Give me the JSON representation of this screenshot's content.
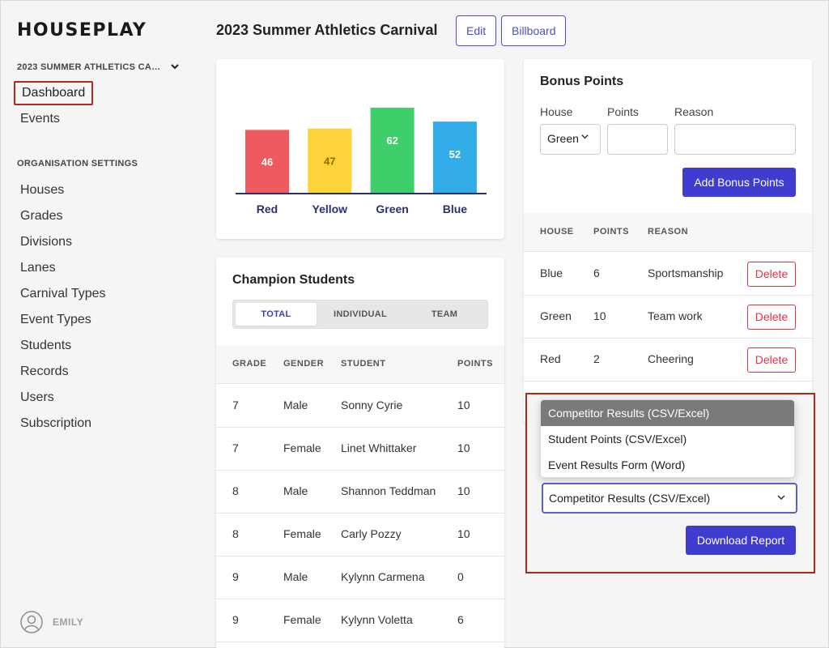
{
  "brand": "HOUSEPLAY",
  "sidebar": {
    "carnival": "2023 SUMMER ATHLETICS CA…",
    "nav": [
      "Dashboard",
      "Events"
    ],
    "org_label": "ORGANISATION SETTINGS",
    "org": [
      "Houses",
      "Grades",
      "Divisions",
      "Lanes",
      "Carnival Types",
      "Event Types",
      "Students",
      "Records",
      "Users",
      "Subscription"
    ],
    "user": "EMILY"
  },
  "header": {
    "title": "2023 Summer Athletics Carnival",
    "edit": "Edit",
    "billboard": "Billboard"
  },
  "chart_data": {
    "type": "bar",
    "categories": [
      "Red",
      "Yellow",
      "Green",
      "Blue"
    ],
    "values": [
      46,
      47,
      62,
      52
    ],
    "colors": [
      "#ef5a5f",
      "#fcd43a",
      "#3ecf6b",
      "#33ade8"
    ],
    "label_colors": [
      "#ffffff",
      "#8a6d00",
      "#ffffff",
      "#ffffff"
    ],
    "axis_color": "#2b2f6e"
  },
  "champions": {
    "title": "Champion Students",
    "tabs": [
      "TOTAL",
      "INDIVIDUAL",
      "TEAM"
    ],
    "columns": [
      "GRADE",
      "GENDER",
      "STUDENT",
      "POINTS"
    ],
    "rows": [
      [
        "7",
        "Male",
        "Sonny Cyrie",
        "10"
      ],
      [
        "7",
        "Female",
        "Linet Whittaker",
        "10"
      ],
      [
        "8",
        "Male",
        "Shannon Teddman",
        "10"
      ],
      [
        "8",
        "Female",
        "Carly Pozzy",
        "10"
      ],
      [
        "9",
        "Male",
        "Kylynn Carmena",
        "0"
      ],
      [
        "9",
        "Female",
        "Kylynn Voletta",
        "6"
      ]
    ]
  },
  "bonus": {
    "title": "Bonus Points",
    "house_label": "House",
    "points_label": "Points",
    "reason_label": "Reason",
    "house_value": "Green",
    "add_button": "Add Bonus Points",
    "columns": [
      "HOUSE",
      "POINTS",
      "REASON"
    ],
    "delete_label": "Delete",
    "rows": [
      [
        "Blue",
        "6",
        "Sportsmanship"
      ],
      [
        "Green",
        "10",
        "Team work"
      ],
      [
        "Red",
        "2",
        "Cheering"
      ]
    ]
  },
  "report": {
    "options": [
      "Competitor Results (CSV/Excel)",
      "Student Points (CSV/Excel)",
      "Event Results Form (Word)"
    ],
    "selected": "Competitor Results (CSV/Excel)",
    "download": "Download Report"
  }
}
